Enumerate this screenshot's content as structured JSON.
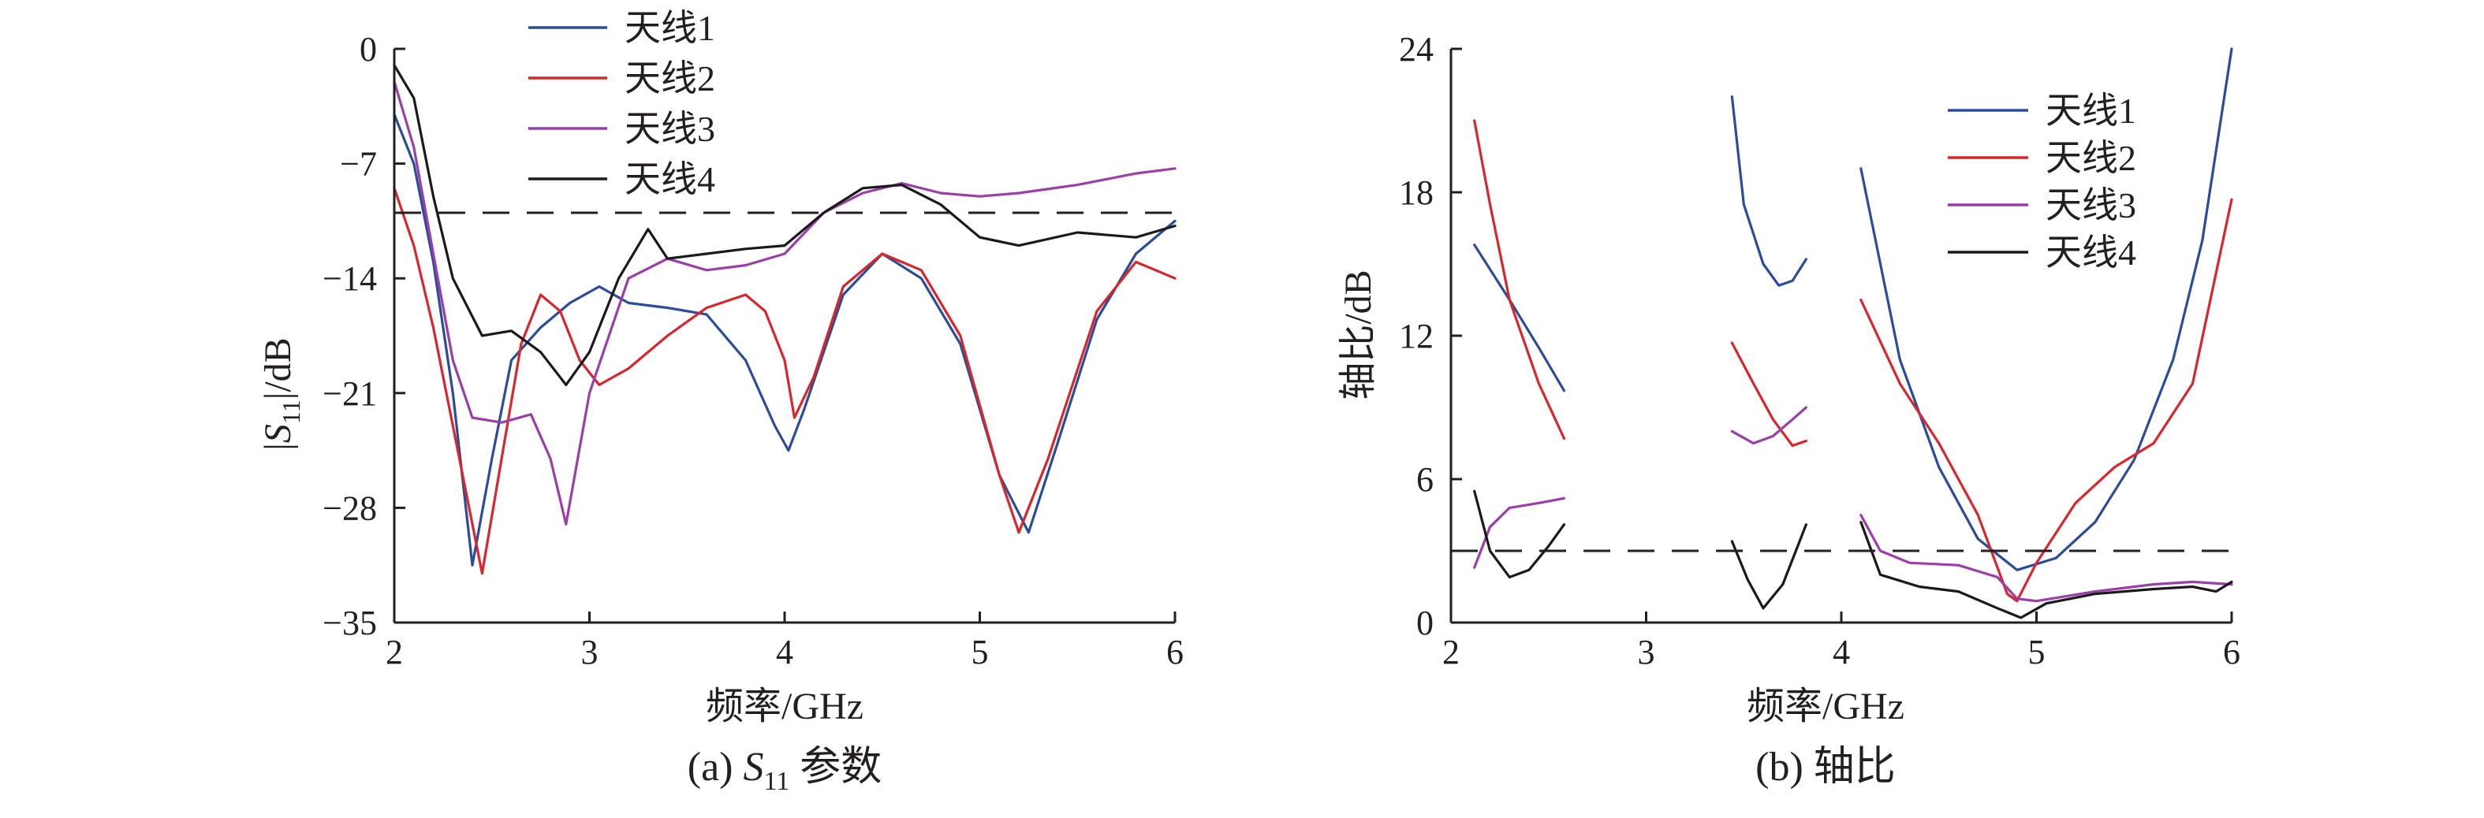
{
  "colors": {
    "antenna1": "#2b4c9b",
    "antenna2": "#d7262c",
    "antenna3": "#9b3fa8",
    "antenna4": "#1a1a1a"
  },
  "chart_data": [
    {
      "type": "line",
      "xlabel": "频率/GHz",
      "ylabel": "|S11|/dB",
      "caption": "(a) S11 参数",
      "xlim": [
        2,
        6
      ],
      "ylim": [
        -35,
        0
      ],
      "xticks": [
        "2",
        "3",
        "4",
        "5",
        "6"
      ],
      "yticks": [
        "0",
        "−7",
        "−14",
        "−21",
        "−28",
        "−35"
      ],
      "legend_position": "top-center",
      "threshold": -10,
      "series": [
        {
          "name": "天线1",
          "color_key": "antenna1",
          "segments": [
            [
              [
                2.0,
                -4
              ],
              [
                2.1,
                -7
              ],
              [
                2.2,
                -13
              ],
              [
                2.3,
                -21
              ],
              [
                2.4,
                -31.5
              ],
              [
                2.5,
                -25
              ],
              [
                2.6,
                -19
              ],
              [
                2.75,
                -17
              ],
              [
                2.9,
                -15.5
              ],
              [
                3.05,
                -14.5
              ],
              [
                3.2,
                -15.5
              ],
              [
                3.4,
                -15.8
              ],
              [
                3.6,
                -16.2
              ],
              [
                3.8,
                -19
              ],
              [
                3.95,
                -23
              ],
              [
                4.02,
                -24.5
              ],
              [
                4.1,
                -22
              ],
              [
                4.3,
                -15
              ],
              [
                4.5,
                -12.5
              ],
              [
                4.7,
                -14
              ],
              [
                4.9,
                -18
              ],
              [
                5.1,
                -26
              ],
              [
                5.25,
                -29.5
              ],
              [
                5.4,
                -24
              ],
              [
                5.6,
                -16.5
              ],
              [
                5.8,
                -12.5
              ],
              [
                6.0,
                -10.5
              ]
            ]
          ]
        },
        {
          "name": "天线2",
          "color_key": "antenna2",
          "segments": [
            [
              [
                2.0,
                -8.5
              ],
              [
                2.1,
                -12
              ],
              [
                2.2,
                -17
              ],
              [
                2.3,
                -23
              ],
              [
                2.45,
                -32
              ],
              [
                2.55,
                -25
              ],
              [
                2.65,
                -18
              ],
              [
                2.75,
                -15
              ],
              [
                2.85,
                -16
              ],
              [
                2.95,
                -19
              ],
              [
                3.05,
                -20.5
              ],
              [
                3.2,
                -19.5
              ],
              [
                3.4,
                -17.5
              ],
              [
                3.6,
                -15.8
              ],
              [
                3.8,
                -15
              ],
              [
                3.9,
                -16
              ],
              [
                4.0,
                -19
              ],
              [
                4.05,
                -22.5
              ],
              [
                4.15,
                -20
              ],
              [
                4.3,
                -14.5
              ],
              [
                4.5,
                -12.5
              ],
              [
                4.7,
                -13.5
              ],
              [
                4.9,
                -17.5
              ],
              [
                5.1,
                -26
              ],
              [
                5.2,
                -29.5
              ],
              [
                5.35,
                -25
              ],
              [
                5.6,
                -16
              ],
              [
                5.8,
                -13
              ],
              [
                6.0,
                -14
              ]
            ]
          ]
        },
        {
          "name": "天线3",
          "color_key": "antenna3",
          "segments": [
            [
              [
                2.0,
                -2
              ],
              [
                2.1,
                -6
              ],
              [
                2.2,
                -12.5
              ],
              [
                2.3,
                -19
              ],
              [
                2.4,
                -22.5
              ],
              [
                2.55,
                -22.8
              ],
              [
                2.7,
                -22.3
              ],
              [
                2.8,
                -25
              ],
              [
                2.88,
                -29
              ],
              [
                3.0,
                -21
              ],
              [
                3.2,
                -14
              ],
              [
                3.4,
                -12.8
              ],
              [
                3.6,
                -13.5
              ],
              [
                3.8,
                -13.2
              ],
              [
                4.0,
                -12.5
              ],
              [
                4.2,
                -10
              ],
              [
                4.4,
                -8.8
              ],
              [
                4.6,
                -8.2
              ],
              [
                4.8,
                -8.8
              ],
              [
                5.0,
                -9
              ],
              [
                5.2,
                -8.8
              ],
              [
                5.5,
                -8.3
              ],
              [
                5.8,
                -7.6
              ],
              [
                6.0,
                -7.3
              ]
            ]
          ]
        },
        {
          "name": "天线4",
          "color_key": "antenna4",
          "segments": [
            [
              [
                2.0,
                -1
              ],
              [
                2.1,
                -3
              ],
              [
                2.2,
                -9
              ],
              [
                2.3,
                -14
              ],
              [
                2.45,
                -17.5
              ],
              [
                2.6,
                -17.2
              ],
              [
                2.75,
                -18.5
              ],
              [
                2.88,
                -20.5
              ],
              [
                3.0,
                -18.5
              ],
              [
                3.15,
                -14
              ],
              [
                3.3,
                -11
              ],
              [
                3.4,
                -12.8
              ],
              [
                3.6,
                -12.5
              ],
              [
                3.8,
                -12.2
              ],
              [
                4.0,
                -12
              ],
              [
                4.2,
                -10
              ],
              [
                4.4,
                -8.5
              ],
              [
                4.6,
                -8.3
              ],
              [
                4.8,
                -9.5
              ],
              [
                5.0,
                -11.5
              ],
              [
                5.2,
                -12
              ],
              [
                5.5,
                -11.2
              ],
              [
                5.8,
                -11.5
              ],
              [
                6.0,
                -10.8
              ]
            ]
          ]
        }
      ]
    },
    {
      "type": "line",
      "xlabel": "频率/GHz",
      "ylabel": "轴比/dB",
      "caption": "(b) 轴比",
      "xlim": [
        2,
        6
      ],
      "ylim": [
        0,
        24
      ],
      "xticks": [
        "2",
        "3",
        "4",
        "5",
        "6"
      ],
      "yticks": [
        "0",
        "6",
        "12",
        "18",
        "24"
      ],
      "legend_position": "top-right",
      "threshold": 3,
      "series": [
        {
          "name": "天线1",
          "color_key": "antenna1",
          "segments": [
            [
              [
                2.12,
                15.8
              ],
              [
                2.3,
                13.5
              ],
              [
                2.45,
                11.5
              ],
              [
                2.58,
                9.7
              ]
            ],
            [
              [
                3.44,
                22.0
              ],
              [
                3.5,
                17.5
              ],
              [
                3.6,
                15
              ],
              [
                3.68,
                14.1
              ],
              [
                3.75,
                14.3
              ],
              [
                3.82,
                15.2
              ]
            ],
            [
              [
                4.1,
                19.0
              ],
              [
                4.3,
                11
              ],
              [
                4.5,
                6.5
              ],
              [
                4.7,
                3.5
              ],
              [
                4.9,
                2.2
              ],
              [
                5.1,
                2.7
              ],
              [
                5.3,
                4.2
              ],
              [
                5.5,
                6.8
              ],
              [
                5.7,
                11
              ],
              [
                5.85,
                16
              ],
              [
                6.0,
                24
              ]
            ]
          ]
        },
        {
          "name": "天线2",
          "color_key": "antenna2",
          "segments": [
            [
              [
                2.12,
                21.0
              ],
              [
                2.2,
                17.5
              ],
              [
                2.3,
                13.5
              ],
              [
                2.45,
                10
              ],
              [
                2.58,
                7.7
              ]
            ],
            [
              [
                3.44,
                11.7
              ],
              [
                3.55,
                10
              ],
              [
                3.65,
                8.5
              ],
              [
                3.75,
                7.4
              ],
              [
                3.82,
                7.6
              ]
            ],
            [
              [
                4.1,
                13.5
              ],
              [
                4.3,
                10
              ],
              [
                4.5,
                7.5
              ],
              [
                4.7,
                4.5
              ],
              [
                4.85,
                1.2
              ],
              [
                4.9,
                0.9
              ],
              [
                5.0,
                2.5
              ],
              [
                5.2,
                5
              ],
              [
                5.4,
                6.5
              ],
              [
                5.6,
                7.5
              ],
              [
                5.8,
                10
              ],
              [
                6.0,
                17.7
              ]
            ]
          ]
        },
        {
          "name": "天线3",
          "color_key": "antenna3",
          "segments": [
            [
              [
                2.12,
                2.3
              ],
              [
                2.2,
                4
              ],
              [
                2.3,
                4.8
              ],
              [
                2.45,
                5.0
              ],
              [
                2.58,
                5.2
              ]
            ],
            [
              [
                3.44,
                8.0
              ],
              [
                3.55,
                7.5
              ],
              [
                3.65,
                7.8
              ],
              [
                3.75,
                8.5
              ],
              [
                3.82,
                9.0
              ]
            ],
            [
              [
                4.1,
                4.5
              ],
              [
                4.2,
                3
              ],
              [
                4.35,
                2.5
              ],
              [
                4.6,
                2.4
              ],
              [
                4.8,
                1.9
              ],
              [
                4.9,
                1.0
              ],
              [
                5.0,
                0.9
              ],
              [
                5.3,
                1.3
              ],
              [
                5.6,
                1.6
              ],
              [
                5.8,
                1.7
              ],
              [
                6.0,
                1.6
              ]
            ]
          ]
        },
        {
          "name": "天线4",
          "color_key": "antenna4",
          "segments": [
            [
              [
                2.12,
                5.5
              ],
              [
                2.2,
                3
              ],
              [
                2.3,
                1.9
              ],
              [
                2.4,
                2.2
              ],
              [
                2.5,
                3.2
              ],
              [
                2.58,
                4.1
              ]
            ],
            [
              [
                3.44,
                3.4
              ],
              [
                3.52,
                1.8
              ],
              [
                3.6,
                0.6
              ],
              [
                3.7,
                1.6
              ],
              [
                3.82,
                4.1
              ]
            ],
            [
              [
                4.1,
                4.2
              ],
              [
                4.2,
                2
              ],
              [
                4.4,
                1.5
              ],
              [
                4.6,
                1.3
              ],
              [
                4.8,
                0.6
              ],
              [
                4.92,
                0.2
              ],
              [
                5.05,
                0.8
              ],
              [
                5.3,
                1.2
              ],
              [
                5.6,
                1.4
              ],
              [
                5.8,
                1.5
              ],
              [
                5.92,
                1.3
              ],
              [
                6.0,
                1.7
              ]
            ]
          ]
        }
      ]
    }
  ]
}
